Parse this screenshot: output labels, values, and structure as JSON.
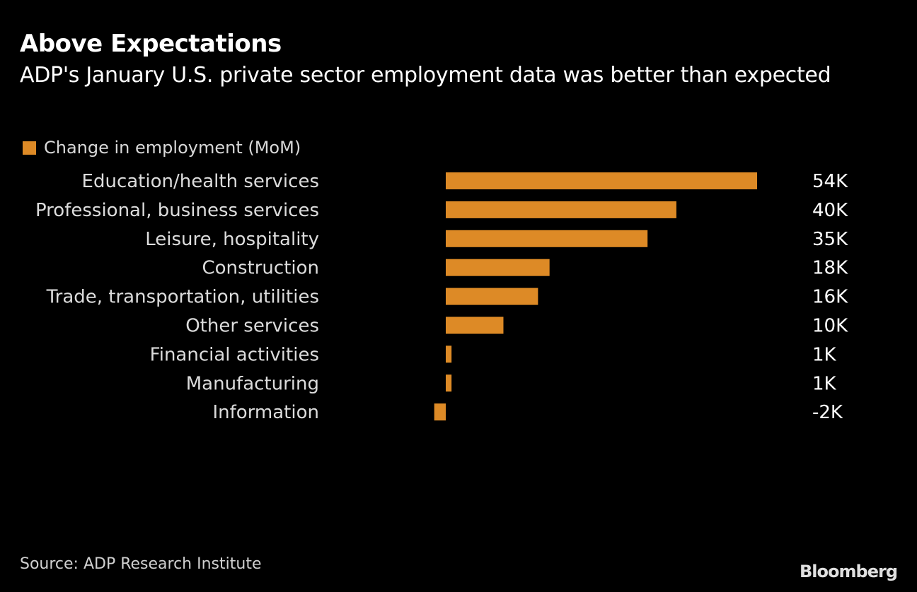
{
  "header": {
    "title": "Above Expectations",
    "subtitle": "ADP's January U.S. private sector employment data was better than expected"
  },
  "footer": {
    "source": "Source: ADP Research Institute",
    "brand": "Bloomberg"
  },
  "colors": {
    "bar": "#DD8A26",
    "background": "#000000"
  },
  "chart_data": {
    "type": "bar",
    "orientation": "horizontal",
    "title": "Above Expectations",
    "subtitle": "ADP's January U.S. private sector employment data was better than expected",
    "xlabel": "",
    "ylabel": "",
    "grid": false,
    "legend_position": "top-left",
    "categories": [
      "Education/health services",
      "Professional, business services",
      "Leisure, hospitality",
      "Construction",
      "Trade, transportation, utilities",
      "Other services",
      "Financial activities",
      "Manufacturing",
      "Information"
    ],
    "series": [
      {
        "name": "Change in employment (MoM)",
        "color": "#DD8A26",
        "values": [
          54,
          40,
          35,
          18,
          16,
          10,
          1,
          1,
          -2
        ],
        "labels": [
          "54K",
          "40K",
          "35K",
          "18K",
          "16K",
          "10K",
          "1K",
          "1K",
          "-2K"
        ]
      }
    ],
    "units": "thousands",
    "xlim": [
      -2,
      54
    ]
  }
}
